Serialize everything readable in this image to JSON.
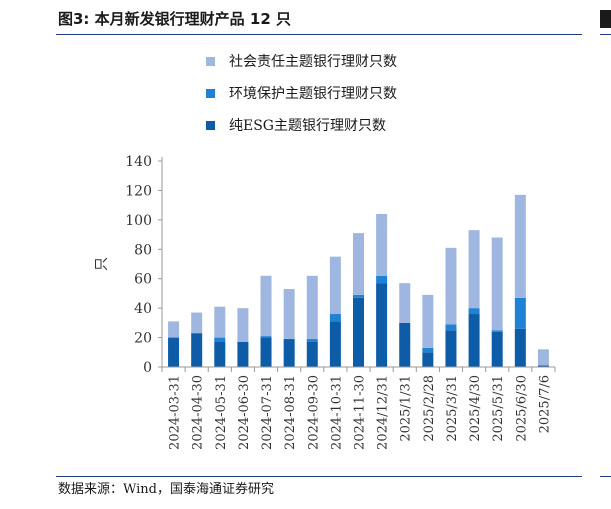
{
  "title": "图3:  本月新发银行理财产品 12 只",
  "source": "数据来源：Wind，国泰海通证券研究",
  "chart_data": {
    "type": "bar",
    "stacked": true,
    "categories": [
      "2024-03-31",
      "2024-04-30",
      "2024-05-31",
      "2024-06-30",
      "2024-07-31",
      "2024-08-31",
      "2024-09-30",
      "2024-10-31",
      "2024-11-30",
      "2024/12/31",
      "2025/1/31",
      "2025/2/28",
      "2025/3/31",
      "2025/4/30",
      "2025/5/31",
      "2025/6/30",
      "2025/7/6"
    ],
    "series": [
      {
        "name": "纯ESG主题银行理财只数",
        "color": "#0d5ca8",
        "values": [
          20,
          23,
          17,
          17,
          20,
          19,
          17,
          31,
          47,
          57,
          30,
          10,
          25,
          36,
          24,
          26,
          1
        ]
      },
      {
        "name": "环境保护主题银行理财只数",
        "color": "#1f82d4",
        "values": [
          0,
          0,
          3,
          0,
          1,
          0,
          2,
          5,
          2,
          5,
          0,
          3,
          4,
          4,
          1,
          21,
          0
        ]
      },
      {
        "name": "社会责任主题银行理财只数",
        "color": "#9fb7e0",
        "values": [
          11,
          14,
          21,
          23,
          41,
          34,
          43,
          39,
          42,
          42,
          27,
          36,
          52,
          53,
          63,
          70,
          11
        ]
      }
    ],
    "legend_order": [
      "社会责任主题银行理财只数",
      "环境保护主题银行理财只数",
      "纯ESG主题银行理财只数"
    ],
    "legend_position": "top",
    "ylabel": "只",
    "ylim": [
      0,
      140
    ],
    "yticks": [
      0,
      20,
      40,
      60,
      80,
      100,
      120,
      140
    ],
    "grid": false
  }
}
